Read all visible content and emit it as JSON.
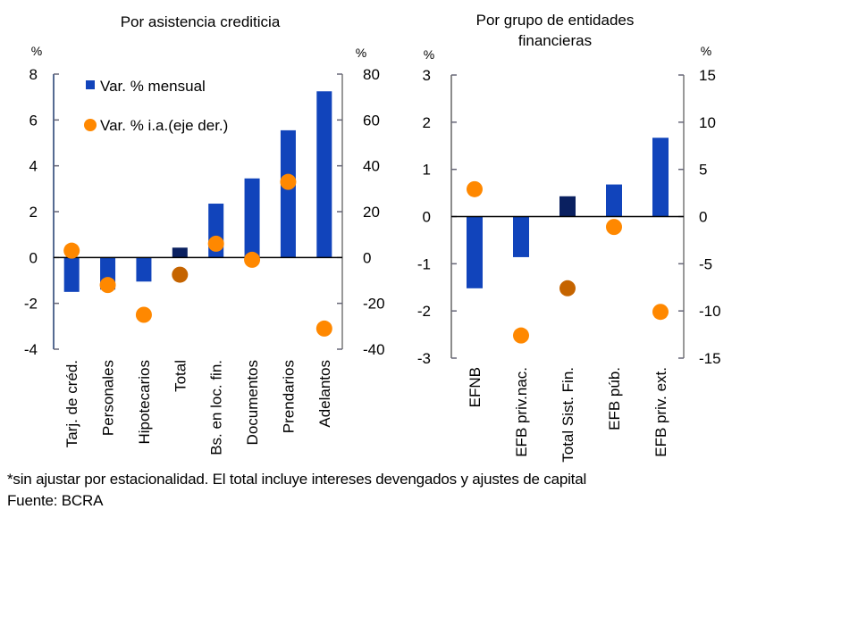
{
  "chart_data": [
    {
      "type": "bar",
      "title": "Por asistencia crediticia",
      "left_unit": "%",
      "right_unit": "%",
      "ylim": [
        -4,
        8
      ],
      "yticks": [
        "-4",
        "-2",
        "0",
        "2",
        "4",
        "6",
        "8"
      ],
      "ylim_right": [
        -40,
        80
      ],
      "yticks_right": [
        "-40",
        "-20",
        "0",
        "20",
        "40",
        "60",
        "80"
      ],
      "categories": [
        "Tarj. de créd.",
        "Personales",
        "Hipotecarios",
        "Total",
        "Bs. en loc. fin.",
        "Documentos",
        "Prendarios",
        "Adelantos"
      ],
      "highlight_category": "Total",
      "legend": {
        "placement": "top-left",
        "bar_label": "Var. % mensual",
        "dot_label": "Var. % i.a.(eje der.)"
      },
      "series": [
        {
          "name": "Var. % mensual",
          "kind": "bar",
          "axis": "left",
          "values": [
            -1.5,
            -1.4,
            -1.05,
            0.43,
            2.35,
            3.45,
            5.55,
            7.25
          ]
        },
        {
          "name": "Var. % i.a.(eje der.)",
          "kind": "dot",
          "axis": "right",
          "values": [
            3,
            -12,
            -25,
            -7.5,
            6,
            -1,
            33,
            -31
          ]
        }
      ]
    },
    {
      "type": "bar",
      "title": "Por grupo de entidades financieras",
      "title_lines": [
        "Por grupo de entidades",
        "financieras"
      ],
      "left_unit": "%",
      "right_unit": "%",
      "ylim": [
        -3,
        3
      ],
      "yticks": [
        "-3",
        "-2",
        "-1",
        "0",
        "1",
        "2",
        "3"
      ],
      "ylim_right": [
        -15,
        15
      ],
      "yticks_right": [
        "-15",
        "-10",
        "-5",
        "0",
        "5",
        "10",
        "15"
      ],
      "categories": [
        "EFNB",
        "EFB priv.nac.",
        "Total Sist. Fin.",
        "EFB púb.",
        "EFB priv. ext."
      ],
      "highlight_category": "Total Sist. Fin.",
      "series": [
        {
          "name": "Var. % mensual",
          "kind": "bar",
          "axis": "left",
          "values": [
            -1.52,
            -0.86,
            0.43,
            0.68,
            1.67
          ]
        },
        {
          "name": "Var. % i.a.(eje der.)",
          "kind": "dot",
          "axis": "right",
          "values": [
            2.9,
            -12.6,
            -7.6,
            -1.1,
            -10.1
          ]
        }
      ]
    }
  ],
  "colors": {
    "bar": "#1144BB",
    "bar_total": "#0A2060",
    "dot": "#FF8800",
    "dot_total": "#C56400",
    "axis": "#1F3A6E"
  },
  "footnote": "*sin ajustar por estacionalidad. El total incluye intereses devengados y ajustes de capital",
  "source": "Fuente: BCRA"
}
